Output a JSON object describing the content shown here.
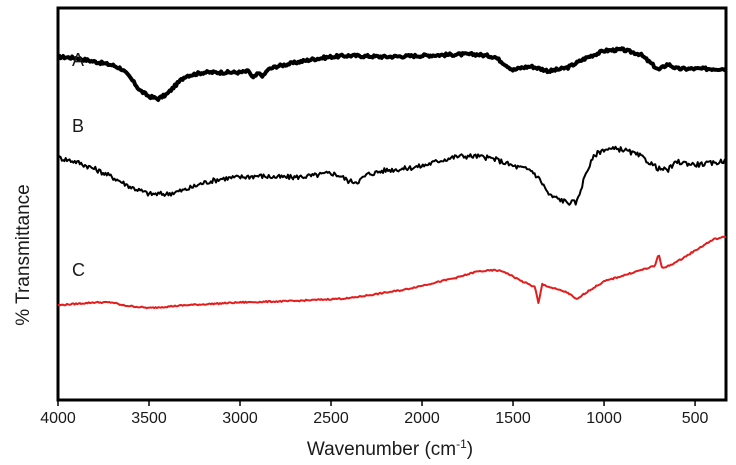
{
  "chart_data": {
    "type": "line",
    "title": "",
    "xlabel": "Wavenumber (cm",
    "xlabel_superscript": "-1",
    "xlabel_suffix": ")",
    "ylabel": "% Transmittance",
    "xlim": [
      4000,
      330
    ],
    "x_reversed": true,
    "y_ticks_shown": false,
    "grid": false,
    "x_ticks": [
      {
        "value": 4000,
        "label": "4000"
      },
      {
        "value": 3500,
        "label": "3500"
      },
      {
        "value": 3000,
        "label": "3000"
      },
      {
        "value": 2500,
        "label": "2500"
      },
      {
        "value": 2000,
        "label": "2000"
      },
      {
        "value": 1500,
        "label": "1500"
      },
      {
        "value": 1000,
        "label": "1000"
      },
      {
        "value": 500,
        "label": "500"
      }
    ],
    "ylim": [
      0,
      100
    ],
    "series": [
      {
        "name": "A",
        "color": "#000000",
        "width": 4,
        "noise": 1.2,
        "points": [
          [
            4000,
            86
          ],
          [
            3900,
            85
          ],
          [
            3800,
            82
          ],
          [
            3700,
            79
          ],
          [
            3650,
            76
          ],
          [
            3600,
            68
          ],
          [
            3550,
            58
          ],
          [
            3500,
            53
          ],
          [
            3450,
            51
          ],
          [
            3400,
            55
          ],
          [
            3350,
            63
          ],
          [
            3300,
            70
          ],
          [
            3200,
            73
          ],
          [
            3100,
            73
          ],
          [
            3000,
            73
          ],
          [
            2950,
            74
          ],
          [
            2930,
            68
          ],
          [
            2900,
            72
          ],
          [
            2870,
            70
          ],
          [
            2850,
            75
          ],
          [
            2800,
            78
          ],
          [
            2700,
            81
          ],
          [
            2600,
            84
          ],
          [
            2500,
            86
          ],
          [
            2400,
            87
          ],
          [
            2300,
            86.5
          ],
          [
            2200,
            86
          ],
          [
            2000,
            87
          ],
          [
            1800,
            88
          ],
          [
            1700,
            88
          ],
          [
            1600,
            86
          ],
          [
            1500,
            75
          ],
          [
            1450,
            77
          ],
          [
            1400,
            78
          ],
          [
            1300,
            74
          ],
          [
            1200,
            77
          ],
          [
            1100,
            85
          ],
          [
            1000,
            91
          ],
          [
            900,
            92
          ],
          [
            800,
            88
          ],
          [
            700,
            75
          ],
          [
            650,
            80
          ],
          [
            600,
            76
          ],
          [
            500,
            76
          ],
          [
            400,
            76
          ],
          [
            330,
            76
          ]
        ]
      },
      {
        "name": "B",
        "color": "#000000",
        "width": 2,
        "noise": 1.8,
        "points": [
          [
            4000,
            66
          ],
          [
            3900,
            63
          ],
          [
            3800,
            58
          ],
          [
            3700,
            52
          ],
          [
            3600,
            45
          ],
          [
            3500,
            40
          ],
          [
            3400,
            40
          ],
          [
            3300,
            43
          ],
          [
            3200,
            48
          ],
          [
            3100,
            51
          ],
          [
            3000,
            52
          ],
          [
            2900,
            53
          ],
          [
            2800,
            52
          ],
          [
            2700,
            52
          ],
          [
            2600,
            53
          ],
          [
            2500,
            55
          ],
          [
            2450,
            53
          ],
          [
            2400,
            49
          ],
          [
            2350,
            49
          ],
          [
            2300,
            54
          ],
          [
            2200,
            57
          ],
          [
            2100,
            58
          ],
          [
            2000,
            60
          ],
          [
            1900,
            64
          ],
          [
            1800,
            67
          ],
          [
            1700,
            67
          ],
          [
            1600,
            65
          ],
          [
            1500,
            60
          ],
          [
            1400,
            57
          ],
          [
            1350,
            50
          ],
          [
            1300,
            39
          ],
          [
            1200,
            34
          ],
          [
            1150,
            34
          ],
          [
            1100,
            55
          ],
          [
            1050,
            68
          ],
          [
            1000,
            72
          ],
          [
            900,
            72
          ],
          [
            800,
            67
          ],
          [
            700,
            58
          ],
          [
            650,
            57
          ],
          [
            600,
            63
          ],
          [
            500,
            61
          ],
          [
            400,
            62
          ],
          [
            330,
            64
          ]
        ]
      },
      {
        "name": "C",
        "color": "#e41c1c",
        "width": 2,
        "noise": 0.5,
        "points": [
          [
            4000,
            7
          ],
          [
            3900,
            8
          ],
          [
            3800,
            9
          ],
          [
            3700,
            9
          ],
          [
            3650,
            7
          ],
          [
            3500,
            5
          ],
          [
            3300,
            7
          ],
          [
            3000,
            9
          ],
          [
            2700,
            10
          ],
          [
            2400,
            12
          ],
          [
            2350,
            13
          ],
          [
            2300,
            14
          ],
          [
            2100,
            18
          ],
          [
            1900,
            24
          ],
          [
            1800,
            27
          ],
          [
            1700,
            31
          ],
          [
            1600,
            32
          ],
          [
            1550,
            31
          ],
          [
            1450,
            24
          ],
          [
            1380,
            20
          ],
          [
            1360,
            8
          ],
          [
            1340,
            22
          ],
          [
            1300,
            20
          ],
          [
            1200,
            16
          ],
          [
            1150,
            11
          ],
          [
            1100,
            16
          ],
          [
            1000,
            24
          ],
          [
            900,
            28
          ],
          [
            800,
            32
          ],
          [
            720,
            35
          ],
          [
            700,
            44
          ],
          [
            680,
            33
          ],
          [
            600,
            38
          ],
          [
            500,
            46
          ],
          [
            400,
            54
          ],
          [
            330,
            56
          ]
        ]
      }
    ],
    "series_labels": [
      {
        "series": "A",
        "text": "A"
      },
      {
        "series": "B",
        "text": "B"
      },
      {
        "series": "C",
        "text": "C"
      }
    ]
  }
}
